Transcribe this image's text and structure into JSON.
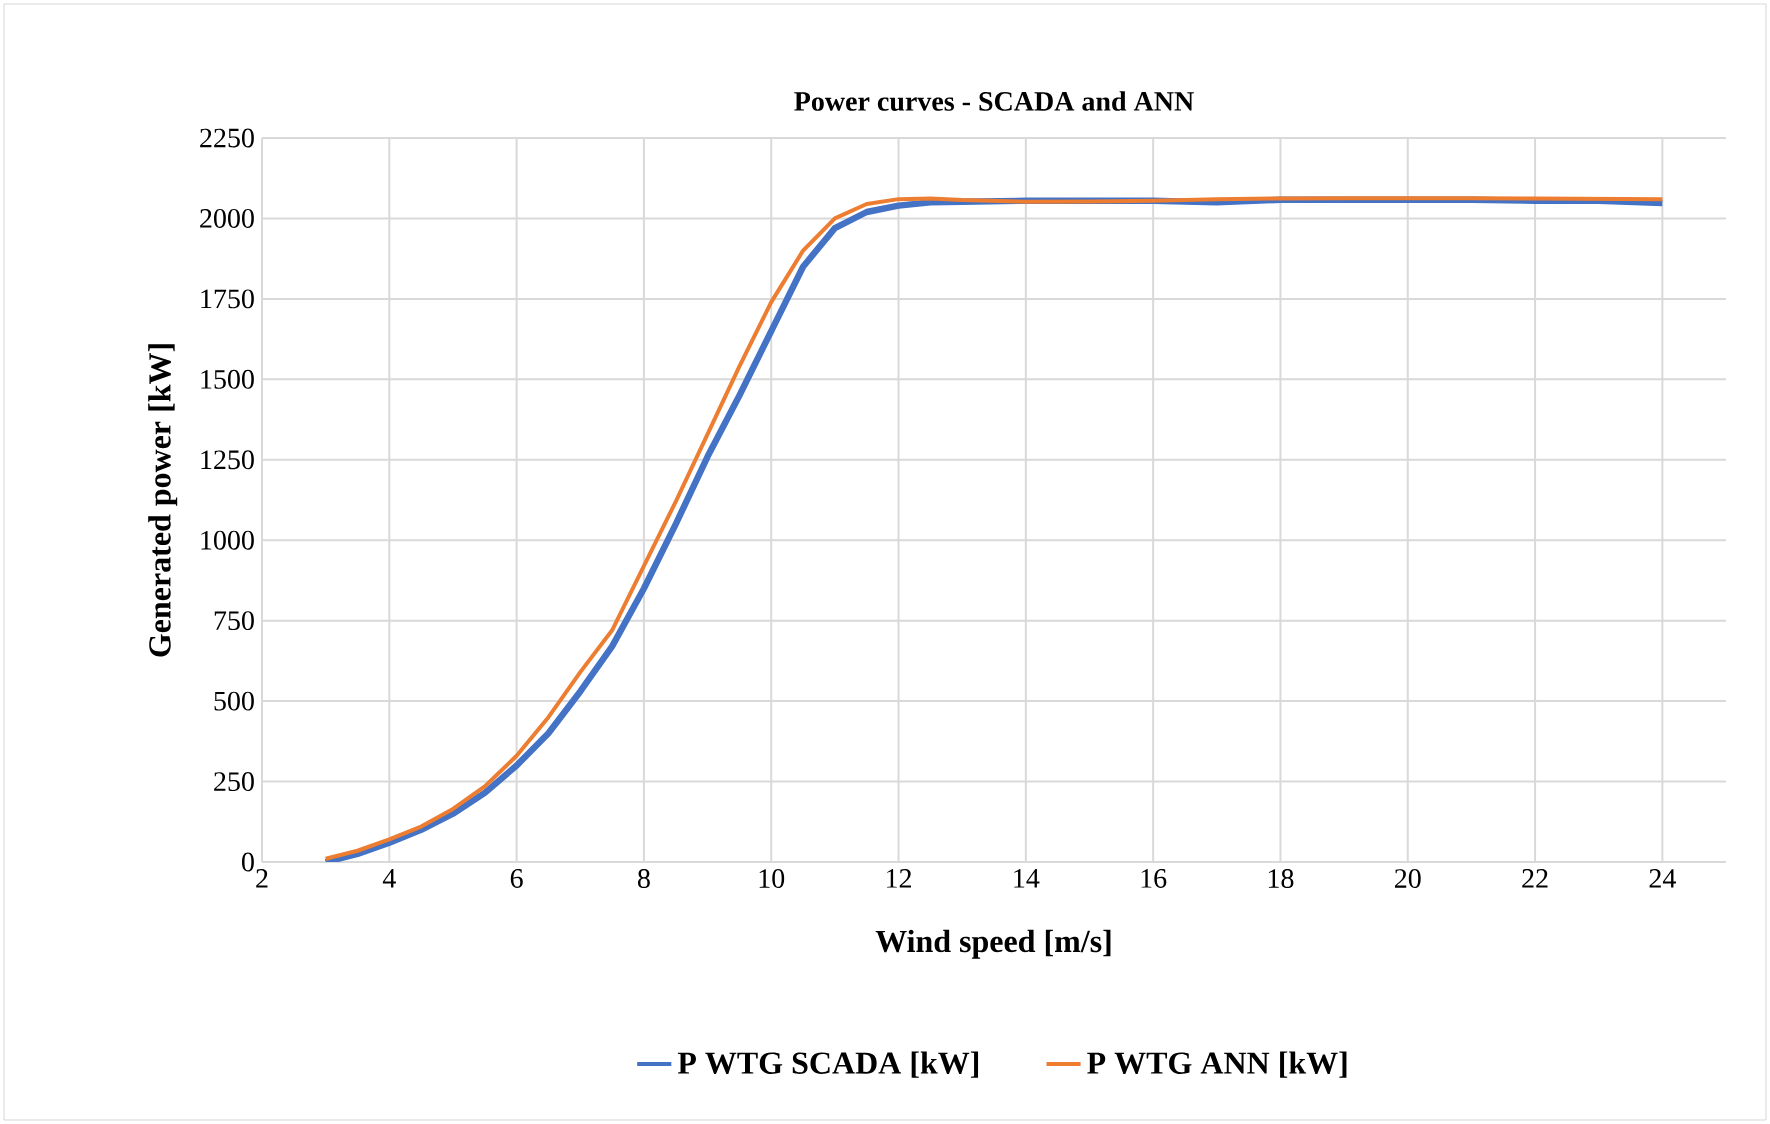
{
  "chart_data": {
    "type": "line",
    "title": "Power curves - SCADA and ANN",
    "xlabel": "Wind speed [m/s]",
    "ylabel": "Generated power [kW]",
    "x": [
      3,
      3.5,
      4,
      4.5,
      5,
      5.5,
      6,
      6.5,
      7,
      7.5,
      8,
      8.5,
      9,
      9.5,
      10,
      10.5,
      11,
      11.5,
      12,
      12.5,
      13,
      14,
      15,
      16,
      17,
      18,
      19,
      20,
      21,
      22,
      23,
      24
    ],
    "series": [
      {
        "name": "P WTG SCADA [kW]",
        "color": "#4472c4",
        "values": [
          0,
          25,
          60,
          100,
          150,
          215,
          300,
          400,
          530,
          670,
          850,
          1050,
          1260,
          1450,
          1650,
          1850,
          1970,
          2020,
          2040,
          2050,
          2052,
          2055,
          2055,
          2055,
          2050,
          2058,
          2058,
          2058,
          2058,
          2055,
          2055,
          2048
        ]
      },
      {
        "name": "P WTG ANN [kW]",
        "color": "#ed7d31",
        "values": [
          10,
          35,
          70,
          110,
          165,
          235,
          330,
          450,
          590,
          720,
          920,
          1120,
          1330,
          1540,
          1740,
          1900,
          2000,
          2045,
          2060,
          2062,
          2057,
          2052,
          2053,
          2055,
          2060,
          2062,
          2063,
          2063,
          2063,
          2062,
          2061,
          2060
        ]
      }
    ],
    "xlim": [
      2,
      25
    ],
    "xticks": [
      2,
      4,
      6,
      8,
      10,
      12,
      14,
      16,
      18,
      20,
      22,
      24
    ],
    "ylim": [
      0,
      2250
    ],
    "yticks": [
      0,
      250,
      500,
      750,
      1000,
      1250,
      1500,
      1750,
      2000,
      2250
    ],
    "grid": true,
    "legend": "bottom",
    "marker": "none",
    "line_style": "solid"
  }
}
